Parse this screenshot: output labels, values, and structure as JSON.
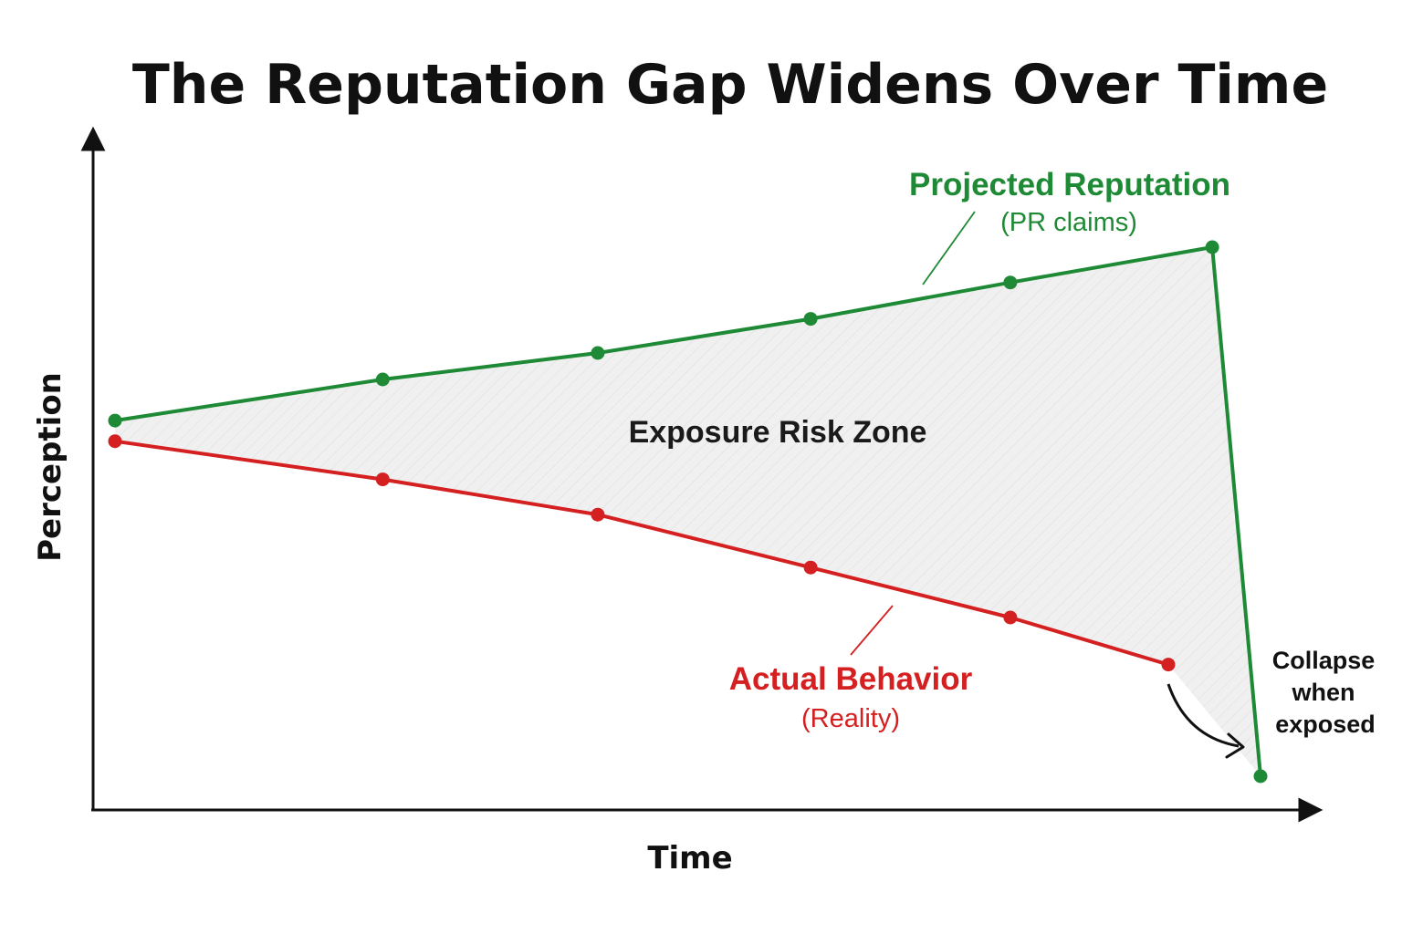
{
  "chart_data": {
    "type": "line",
    "title": "The Reputation Gap Widens Over Time",
    "xlabel": "Time",
    "ylabel": "Perception",
    "x": [
      0,
      1,
      2,
      3,
      4,
      5,
      5.2
    ],
    "series": [
      {
        "name": "Projected Reputation",
        "subtitle": "(PR claims)",
        "color": "#1e8a35",
        "x": [
          0,
          1.22,
          2.2,
          3.17,
          4.08,
          5,
          5.22
        ],
        "values": [
          55.5,
          62.5,
          67,
          72.8,
          79,
          85,
          -5
        ]
      },
      {
        "name": "Actual Behavior",
        "subtitle": "(Reality)",
        "color": "#d42020",
        "x": [
          0,
          1.22,
          2.2,
          3.17,
          4.08,
          4.8
        ],
        "values": [
          52,
          45.5,
          39.5,
          30.5,
          22,
          14
        ]
      }
    ],
    "annotations": {
      "zone_label": "Exposure Risk Zone",
      "collapse_lines": [
        "Collapse",
        "when",
        "exposed"
      ]
    },
    "zone_fill": "#efefef",
    "axis_color": "#111111",
    "grid": false,
    "legend": "inline-labels"
  }
}
